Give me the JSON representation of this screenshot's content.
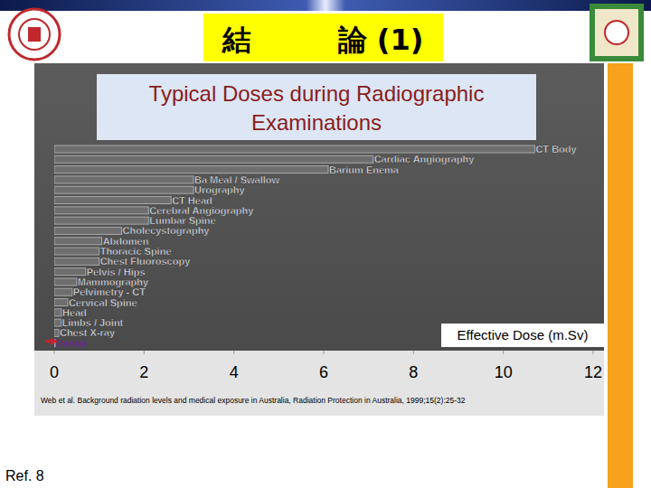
{
  "header": {
    "title": "結　　　論 (1)"
  },
  "chart_data": {
    "type": "bar",
    "orientation": "horizontal",
    "title": "Typical Doses during Radiographic Examinations",
    "x_label": "Effective Dose (m.Sv)",
    "categories": [
      "CT Body",
      "Cardiac Angiography",
      "Barium Enema",
      "Ba Meal / Swallow",
      "Urography",
      "CT Head",
      "Cerebral Angiography",
      "Lumbar Spine",
      "Cholecystography",
      "Abdomen",
      "Thoracic Spine",
      "Chest Fluoroscopy",
      "Pelvis / Hips",
      "Mammography",
      "Pelvimetry - CT",
      "Cervical Spine",
      "Head",
      "Limbs / Joint",
      "Chest X-ray",
      "Dental"
    ],
    "values": [
      10.7,
      7.1,
      6.1,
      3.1,
      3.1,
      2.6,
      2.1,
      2.1,
      1.5,
      1.06,
      1.0,
      1.0,
      0.7,
      0.5,
      0.4,
      0.3,
      0.16,
      0.15,
      0.1,
      0.02
    ],
    "color": "#6e6e6e",
    "xlim": [
      0,
      12
    ],
    "xticks": [
      0,
      2,
      4,
      6,
      8,
      10,
      12
    ],
    "grid": false,
    "annotations": [
      "Web et al. Background radiation levels and medical exposure in Australia, Radiation Protection in Australia, 1999;15(2):25-32"
    ]
  },
  "footer": {
    "ref": "Ref. 8"
  }
}
